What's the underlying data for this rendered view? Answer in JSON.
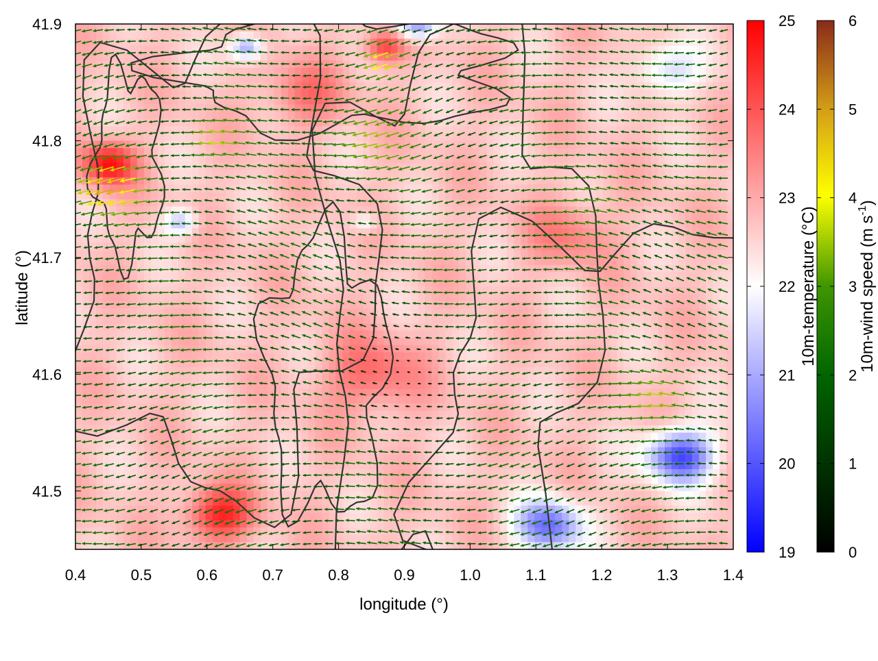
{
  "chart_data": {
    "type": "heatmap",
    "xlabel": "longitude (°)",
    "ylabel": "latitude (°)",
    "xlim": [
      0.4,
      1.4
    ],
    "ylim": [
      41.45,
      41.9
    ],
    "x_ticks": [
      "0.4",
      "0.5",
      "0.6",
      "0.7",
      "0.8",
      "0.9",
      "1.0",
      "1.1",
      "1.2",
      "1.3",
      "1.4"
    ],
    "y_ticks": [
      "41.5",
      "41.6",
      "41.7",
      "41.8",
      "41.9"
    ],
    "grid": false,
    "legend": "none",
    "layers": [
      {
        "kind": "color-field",
        "variable": "10m-temperature",
        "colorbar_label": "10m-temperature (°C)",
        "range": [
          19,
          25
        ],
        "colorbar_ticks": [
          "19",
          "20",
          "21",
          "22",
          "23",
          "24",
          "25"
        ],
        "colormap": [
          "#0000ff",
          "#ffffff",
          "#ff0000"
        ],
        "blobs": [
          {
            "lon": 0.45,
            "lat": 41.78,
            "value": 24.8,
            "spread": 0.04
          },
          {
            "lon": 0.56,
            "lat": 41.73,
            "value": 21.3,
            "spread": 0.025
          },
          {
            "lon": 0.62,
            "lat": 41.48,
            "value": 24.6,
            "spread": 0.05
          },
          {
            "lon": 0.85,
            "lat": 41.6,
            "value": 23.8,
            "spread": 0.07
          },
          {
            "lon": 0.87,
            "lat": 41.88,
            "value": 24.3,
            "spread": 0.03
          },
          {
            "lon": 0.75,
            "lat": 41.84,
            "value": 23.6,
            "spread": 0.06
          },
          {
            "lon": 1.15,
            "lat": 41.72,
            "value": 23.5,
            "spread": 0.06
          },
          {
            "lon": 1.32,
            "lat": 41.53,
            "value": 19.8,
            "spread": 0.05
          },
          {
            "lon": 1.12,
            "lat": 41.47,
            "value": 20.3,
            "spread": 0.05
          },
          {
            "lon": 0.66,
            "lat": 41.88,
            "value": 20.8,
            "spread": 0.025
          },
          {
            "lon": 0.92,
            "lat": 41.9,
            "value": 20.5,
            "spread": 0.03
          },
          {
            "lon": 1.3,
            "lat": 41.86,
            "value": 21.5,
            "spread": 0.05
          },
          {
            "lon": 0.84,
            "lat": 41.73,
            "value": 21.8,
            "spread": 0.02
          }
        ],
        "base_value": 22.7
      },
      {
        "kind": "vector-field",
        "variable": "10m-wind speed",
        "colorbar_label": "10m-wind speed (m s-1)",
        "colorbar_label_main": "10m-wind speed (m s",
        "colorbar_label_sup": "-1",
        "colorbar_label_close": ")",
        "range": [
          0,
          6
        ],
        "colorbar_ticks": [
          "0",
          "1",
          "2",
          "3",
          "4",
          "5",
          "6"
        ],
        "colormap": [
          "#000000",
          "#006400",
          "#ffff00",
          "#8b2a1a"
        ],
        "prevailing_direction": "westward",
        "regions": [
          {
            "lon": 0.46,
            "lat": 41.76,
            "speed": 4.8,
            "spread": 0.05
          },
          {
            "lon": 0.62,
            "lat": 41.8,
            "speed": 3.8,
            "spread": 0.04
          },
          {
            "lon": 0.85,
            "lat": 41.8,
            "speed": 3.4,
            "spread": 0.07
          },
          {
            "lon": 0.88,
            "lat": 41.87,
            "speed": 4.0,
            "spread": 0.03
          },
          {
            "lon": 1.3,
            "lat": 41.58,
            "speed": 3.6,
            "spread": 0.05
          },
          {
            "lon": 1.22,
            "lat": 41.75,
            "speed": 3.0,
            "spread": 0.06
          },
          {
            "lon": 0.9,
            "lat": 41.6,
            "speed": 0.4,
            "spread": 0.1
          }
        ],
        "base_speed": 2.0
      },
      {
        "kind": "contour-lines",
        "color": "#333333"
      }
    ]
  },
  "colors": {
    "contour": "#333333",
    "frame": "#000000"
  }
}
